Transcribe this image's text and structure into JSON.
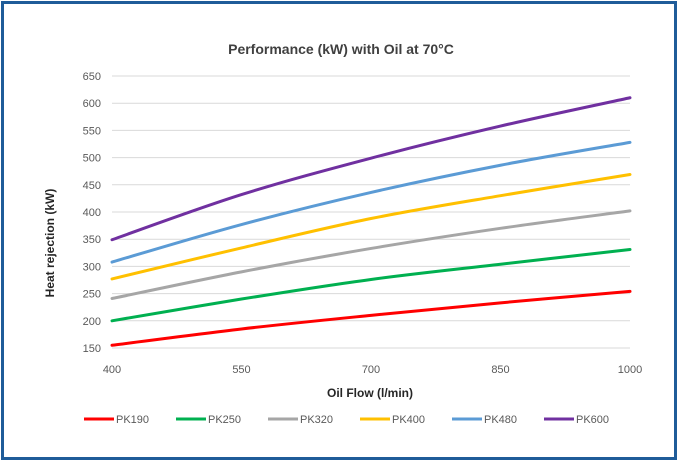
{
  "chart_data": {
    "type": "line",
    "title": "Performance  (kW) with Oil at 70°C",
    "xlabel": "Oil Flow (l/min)",
    "ylabel": "Heat rejection (kW)",
    "xlim": [
      400,
      1000
    ],
    "ylim": [
      150,
      650
    ],
    "xticks": [
      "400",
      "550",
      "700",
      "850",
      "1000"
    ],
    "yticks": [
      "150",
      "200",
      "250",
      "300",
      "350",
      "400",
      "450",
      "500",
      "550",
      "600",
      "650"
    ],
    "grid": true,
    "legend_position": "bottom",
    "x": [
      400,
      550,
      700,
      850,
      1000
    ],
    "series": [
      {
        "name": "PK190",
        "color": "#ff0000",
        "values": [
          155,
          185,
          210,
          233,
          254
        ]
      },
      {
        "name": "PK250",
        "color": "#00b050",
        "values": [
          200,
          240,
          276,
          304,
          331
        ]
      },
      {
        "name": "PK320",
        "color": "#a6a6a6",
        "values": [
          241,
          290,
          333,
          370,
          402
        ]
      },
      {
        "name": "PK400",
        "color": "#ffc000",
        "values": [
          277,
          334,
          388,
          430,
          469
        ]
      },
      {
        "name": "PK480",
        "color": "#5b9bd5",
        "values": [
          308,
          377,
          436,
          486,
          528
        ]
      },
      {
        "name": "PK600",
        "color": "#7030a0",
        "values": [
          349,
          432,
          499,
          558,
          610
        ]
      }
    ]
  }
}
